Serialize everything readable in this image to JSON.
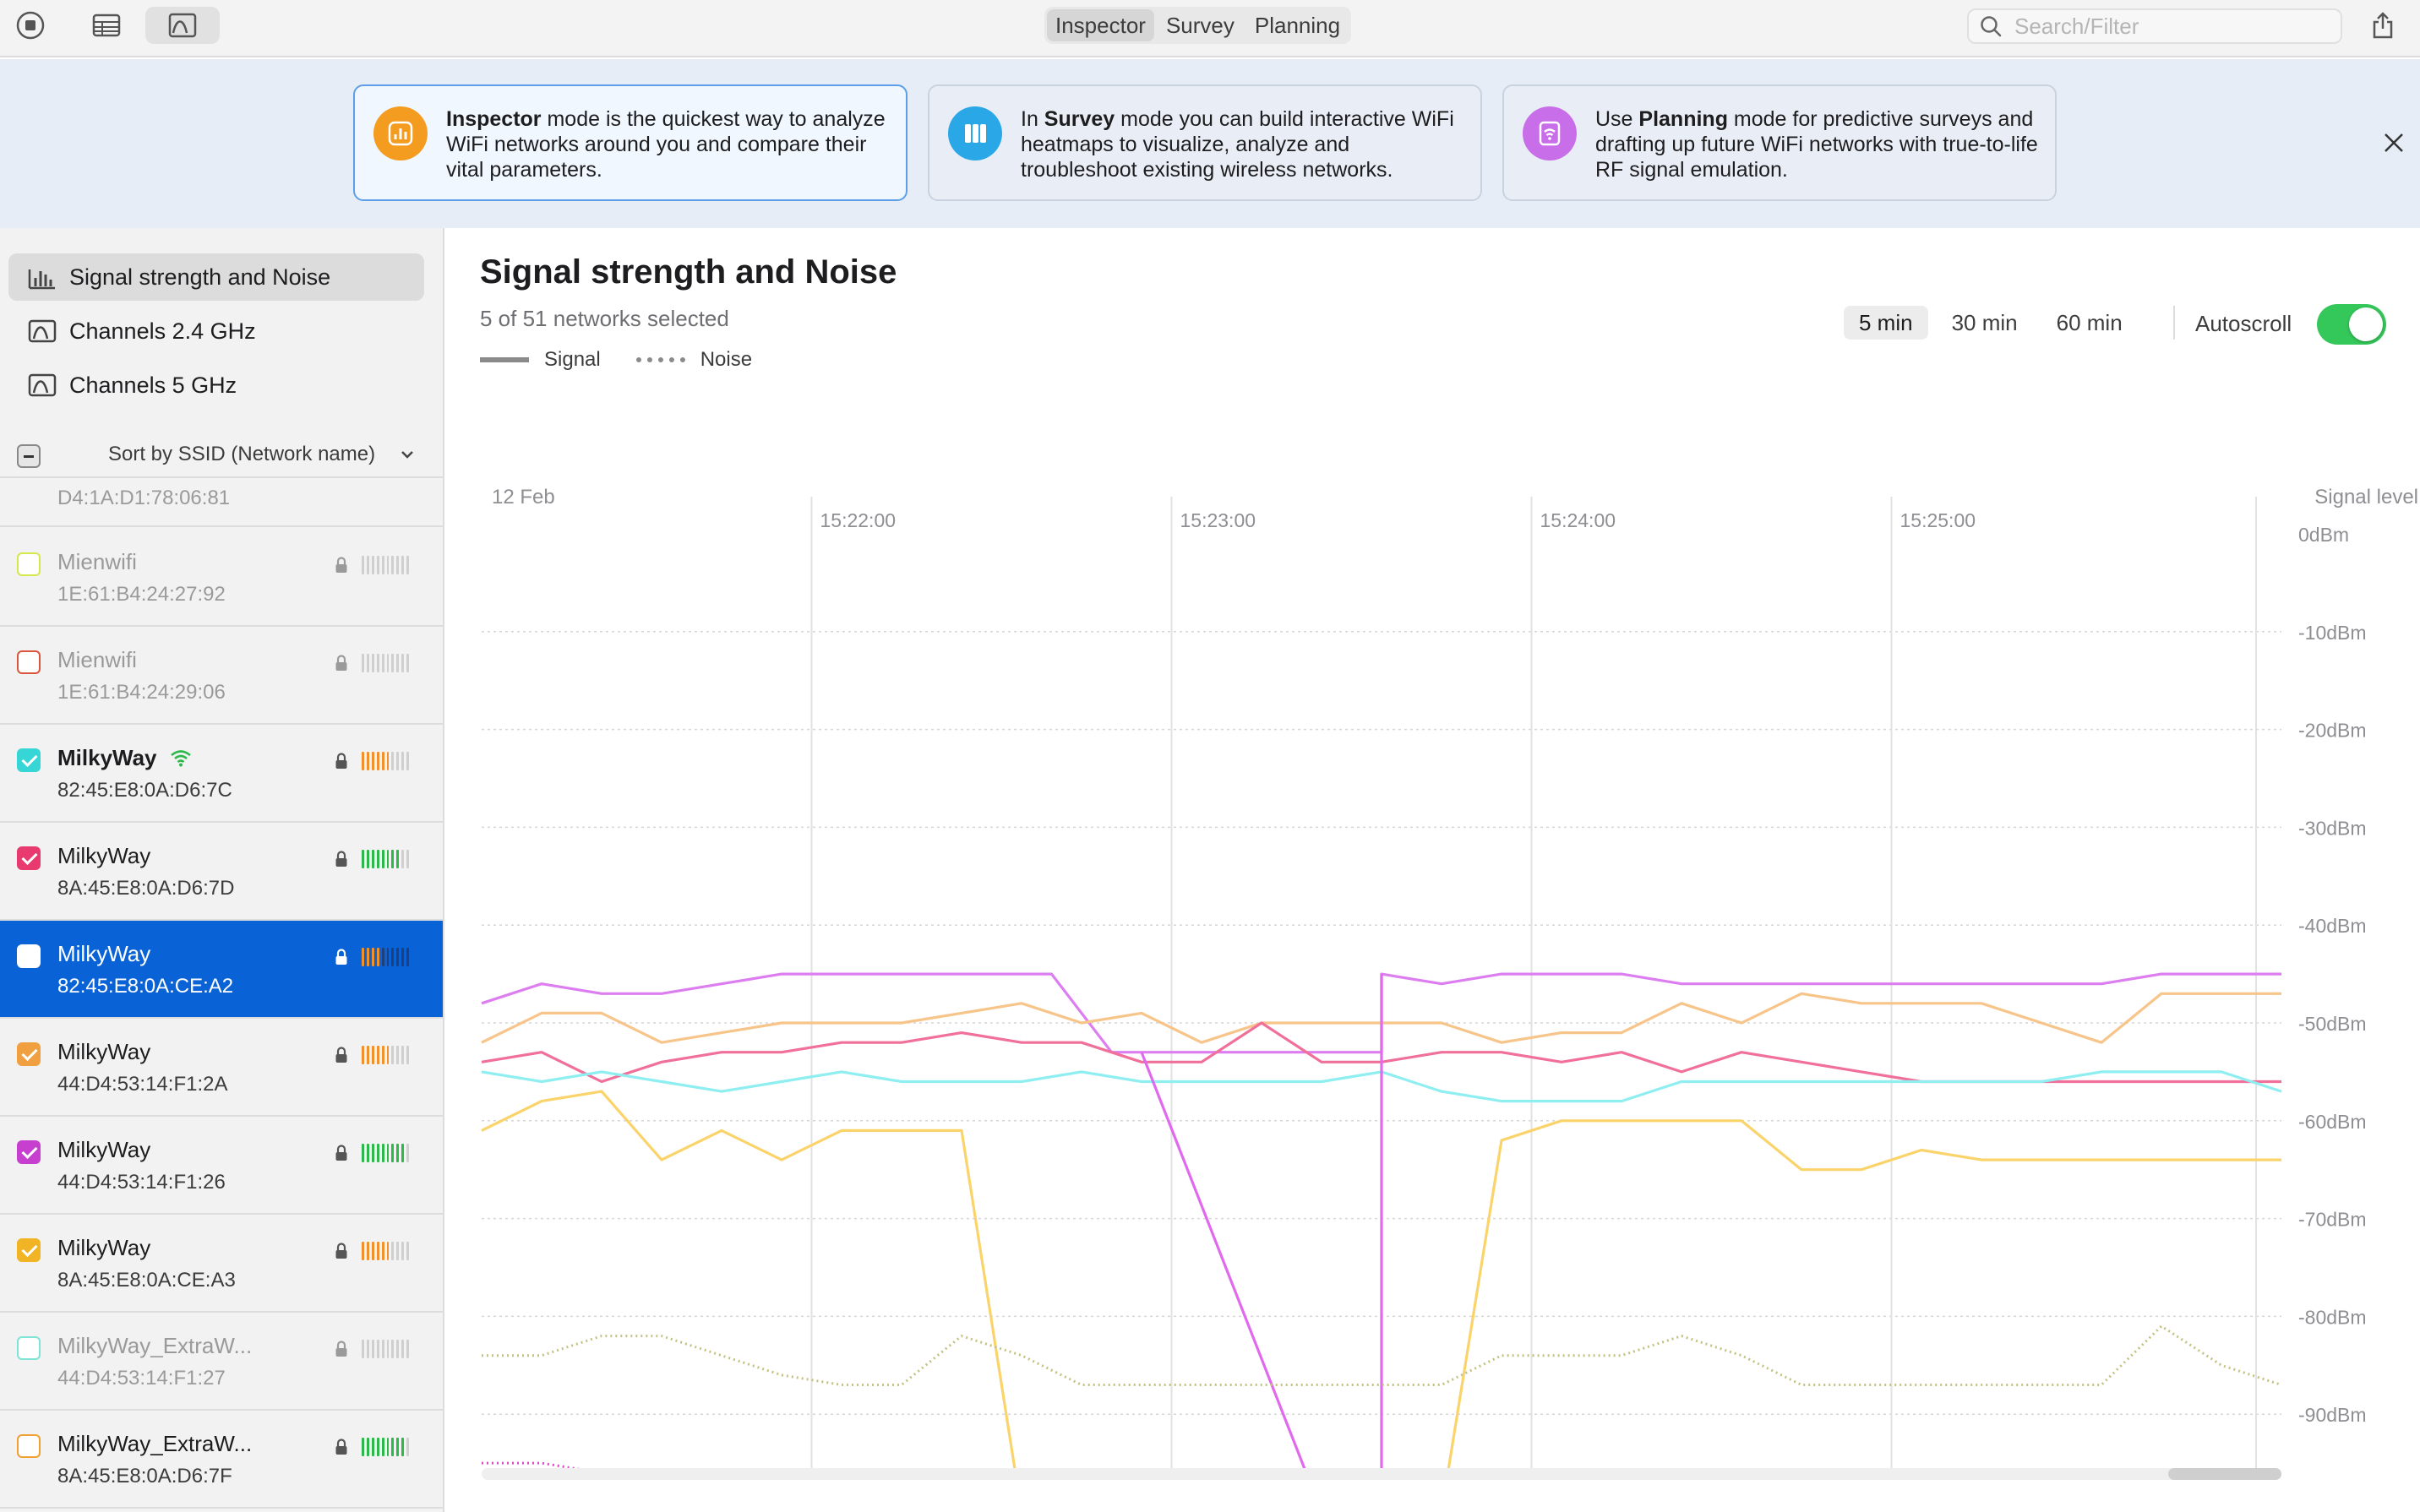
{
  "toolbar": {
    "modes": [
      {
        "label": "Inspector",
        "active": true
      },
      {
        "label": "Survey",
        "active": false
      },
      {
        "label": "Planning",
        "active": false
      }
    ],
    "search_placeholder": "Search/Filter",
    "icons": [
      "record-icon",
      "table-view-icon",
      "channel-view-icon",
      "share-icon"
    ]
  },
  "banner": {
    "cards": [
      {
        "pre": "",
        "bold": "Inspector",
        "text": " mode is the quickest way to analyze WiFi networks around you and compare their vital parameters.",
        "icon": "inspector-icon",
        "color": "#f39c1f",
        "active": true
      },
      {
        "pre": "In ",
        "bold": "Survey",
        "text": " mode you can build interactive WiFi heatmaps to visualize, analyze and troubleshoot existing wireless networks.",
        "icon": "survey-icon",
        "color": "#2aa7e6",
        "active": false
      },
      {
        "pre": "Use ",
        "bold": "Planning",
        "text": " mode for predictive surveys and drafting up future WiFi networks with true-to-life RF signal emulation.",
        "icon": "planning-icon",
        "color": "#c86ee8",
        "active": false
      }
    ]
  },
  "sidebar": {
    "nav": [
      {
        "label": "Signal strength and Noise",
        "icon": "signal-chart-icon",
        "active": true
      },
      {
        "label": "Channels 2.4 GHz",
        "icon": "channel-icon",
        "active": false
      },
      {
        "label": "Channels 5 GHz",
        "icon": "channel-icon",
        "active": false
      }
    ],
    "sort_label": "Sort by SSID (Network name)",
    "top_partial_bssid": "D4:1A:D1:78:06:81",
    "networks": [
      {
        "ssid": "Mienwifi",
        "bssid": "1E:61:B4:24:27:92",
        "color": "#d4e84a",
        "checked": false,
        "dim": true,
        "connected": false,
        "bars": 0,
        "bar_color": "#cfcfcf",
        "selected": false
      },
      {
        "ssid": "Mienwifi",
        "bssid": "1E:61:B4:24:29:06",
        "color": "#d9553c",
        "checked": false,
        "dim": true,
        "connected": false,
        "bars": 0,
        "bar_color": "#cfcfcf",
        "selected": false
      },
      {
        "ssid": "MilkyWay",
        "bssid": "82:45:E8:0A:D6:7C",
        "color": "#37d6d6",
        "checked": true,
        "dim": false,
        "connected": true,
        "bars": 3,
        "bar_color": "#f0912c",
        "selected": false
      },
      {
        "ssid": "MilkyWay",
        "bssid": "8A:45:E8:0A:D6:7D",
        "color": "#e83a6e",
        "checked": true,
        "dim": false,
        "connected": false,
        "bars": 4,
        "bar_color": "#2db84c",
        "selected": false
      },
      {
        "ssid": "MilkyWay",
        "bssid": "82:45:E8:0A:CE:A2",
        "color": "#ffffff",
        "checked": false,
        "dim": false,
        "connected": false,
        "bars": 2,
        "bar_color": "#f0912c",
        "selected": true
      },
      {
        "ssid": "MilkyWay",
        "bssid": "44:D4:53:14:F1:2A",
        "color": "#f0a040",
        "checked": true,
        "dim": false,
        "connected": false,
        "bars": 3,
        "bar_color": "#f0912c",
        "selected": false
      },
      {
        "ssid": "MilkyWay",
        "bssid": "44:D4:53:14:F1:26",
        "color": "#c63fcf",
        "checked": true,
        "dim": false,
        "connected": false,
        "bars": 5,
        "bar_color": "#2db84c",
        "selected": false
      },
      {
        "ssid": "MilkyWay",
        "bssid": "8A:45:E8:0A:CE:A3",
        "color": "#f0b424",
        "checked": true,
        "dim": false,
        "connected": false,
        "bars": 3,
        "bar_color": "#f0912c",
        "selected": false
      },
      {
        "ssid": "MilkyWay_ExtraW...",
        "bssid": "44:D4:53:14:F1:27",
        "color": "#7fe3d6",
        "checked": false,
        "dim": true,
        "connected": false,
        "bars": 0,
        "bar_color": "#cfcfcf",
        "selected": false
      },
      {
        "ssid": "MilkyWay_ExtraW...",
        "bssid": "8A:45:E8:0A:D6:7F",
        "color": "#f0a030",
        "checked": false,
        "dim": false,
        "connected": false,
        "bars": 5,
        "bar_color": "#2db84c",
        "selected": false
      }
    ]
  },
  "main": {
    "title": "Signal strength and Noise",
    "subtitle": "5 of 51 networks selected",
    "legend_signal": "Signal",
    "legend_noise": "Noise",
    "time_options": [
      {
        "label": "5 min",
        "active": true
      },
      {
        "label": "30 min",
        "active": false
      },
      {
        "label": "60 min",
        "active": false
      }
    ],
    "autoscroll_label": "Autoscroll",
    "autoscroll_on": true
  },
  "chart_data": {
    "type": "line",
    "title": "Signal strength and Noise",
    "date_label": "12 Feb",
    "ylabel": "Signal level",
    "x_ticks": [
      "15:22:00",
      "15:23:00",
      "15:24:00",
      "15:25:00"
    ],
    "y_ticks": [
      "0dBm",
      "-10dBm",
      "-20dBm",
      "-30dBm",
      "-40dBm",
      "-50dBm",
      "-60dBm",
      "-70dBm",
      "-80dBm",
      "-90dBm"
    ],
    "ylim": [
      -100,
      0
    ],
    "x_range_seconds": [
      -55,
      245
    ],
    "x_unit": "seconds after 15:22:00",
    "grid": true,
    "series": [
      {
        "kind": "signal",
        "color": "#dd7ef0",
        "x": [
          -55,
          -45,
          -35,
          -25,
          -15,
          -5,
          5,
          15,
          25,
          35,
          40,
          50,
          55,
          80,
          95,
          95,
          105,
          115,
          125,
          135,
          145,
          155,
          165,
          175,
          185,
          195,
          205,
          215,
          225,
          235,
          245
        ],
        "y": [
          -48,
          -46,
          -47,
          -47,
          -46,
          -45,
          -45,
          -45,
          -45,
          -45,
          -45,
          -53,
          -53,
          -53,
          -53,
          -45,
          -46,
          -45,
          -45,
          -45,
          -46,
          -46,
          -46,
          -46,
          -46,
          -46,
          -46,
          -46,
          -45,
          -45,
          -45
        ]
      },
      {
        "kind": "signal",
        "color": "#f7c48a",
        "x": [
          -55,
          -45,
          -35,
          -25,
          -15,
          -5,
          5,
          15,
          25,
          35,
          45,
          55,
          65,
          75,
          85,
          95,
          105,
          115,
          125,
          135,
          145,
          155,
          165,
          175,
          185,
          195,
          205,
          215,
          225,
          235,
          245
        ],
        "y": [
          -52,
          -49,
          -49,
          -52,
          -51,
          -50,
          -50,
          -50,
          -49,
          -48,
          -50,
          -49,
          -52,
          -50,
          -50,
          -50,
          -50,
          -52,
          -51,
          -51,
          -48,
          -50,
          -47,
          -48,
          -48,
          -48,
          -50,
          -52,
          -47,
          -47,
          -47
        ]
      },
      {
        "kind": "signal",
        "color": "#f0709a",
        "x": [
          -55,
          -45,
          -35,
          -25,
          -15,
          -5,
          5,
          15,
          25,
          35,
          45,
          55,
          65,
          75,
          85,
          95,
          105,
          115,
          125,
          135,
          145,
          155,
          165,
          175,
          185,
          195,
          205,
          215,
          225,
          235,
          245
        ],
        "y": [
          -54,
          -53,
          -56,
          -54,
          -53,
          -53,
          -52,
          -52,
          -51,
          -52,
          -52,
          -54,
          -54,
          -50,
          -54,
          -54,
          -53,
          -53,
          -54,
          -53,
          -55,
          -53,
          -54,
          -55,
          -56,
          -56,
          -56,
          -56,
          -56,
          -56,
          -56
        ]
      },
      {
        "kind": "signal",
        "color": "#8eeef0",
        "x": [
          -55,
          -45,
          -35,
          -25,
          -15,
          -5,
          5,
          15,
          25,
          35,
          45,
          55,
          65,
          75,
          85,
          95,
          105,
          115,
          125,
          135,
          145,
          155,
          165,
          175,
          185,
          195,
          205,
          215,
          225,
          235,
          245
        ],
        "y": [
          -55,
          -56,
          -55,
          -56,
          -57,
          -56,
          -55,
          -56,
          -56,
          -56,
          -55,
          -56,
          -56,
          -56,
          -56,
          -55,
          -57,
          -58,
          -58,
          -58,
          -56,
          -56,
          -56,
          -56,
          -56,
          -56,
          -56,
          -55,
          -55,
          -55,
          -57
        ]
      },
      {
        "kind": "signal",
        "color": "#fad36a",
        "x": [
          -55,
          -45,
          -35,
          -25,
          -15,
          -5,
          5,
          15,
          25,
          35,
          45,
          55,
          65,
          75,
          85,
          95,
          105,
          115,
          125,
          135,
          145,
          155,
          165,
          175,
          185,
          195,
          205,
          215,
          225,
          235,
          245
        ],
        "y": [
          -61,
          -58,
          -57,
          -64,
          -61,
          -64,
          -61,
          -61,
          -61,
          -100,
          -100,
          -100,
          -100,
          -100,
          -100,
          -100,
          -100,
          -62,
          -60,
          -60,
          -60,
          -60,
          -65,
          -65,
          -63,
          -64,
          -64,
          -64,
          -64,
          -64,
          -64
        ]
      },
      {
        "kind": "signal",
        "color": "#e069ee",
        "x": [
          55,
          85,
          95,
          95
        ],
        "y": [
          -53,
          -100,
          -100,
          -45
        ]
      },
      {
        "kind": "noise",
        "color": "#c4c282",
        "x": [
          -55,
          -45,
          -35,
          -25,
          -15,
          -5,
          5,
          15,
          25,
          35,
          45,
          55,
          65,
          75,
          85,
          95,
          105,
          115,
          125,
          135,
          145,
          155,
          165,
          175,
          185,
          195,
          205,
          215,
          225,
          235,
          245
        ],
        "y": [
          -84,
          -84,
          -82,
          -82,
          -84,
          -86,
          -87,
          -87,
          -82,
          -84,
          -87,
          -87,
          -87,
          -87,
          -87,
          -87,
          -87,
          -84,
          -84,
          -84,
          -82,
          -84,
          -87,
          -87,
          -87,
          -87,
          -87,
          -87,
          -81,
          -85,
          -87
        ]
      },
      {
        "kind": "noise",
        "color": "#d84ec8",
        "x": [
          -55,
          -45,
          -35,
          -25,
          -15,
          -5,
          5,
          15,
          25,
          35,
          45,
          55,
          65,
          75,
          85,
          95,
          105,
          115,
          125,
          135,
          145,
          155,
          165,
          175,
          185,
          195,
          205,
          215,
          225,
          235,
          245
        ],
        "y": [
          -95,
          -95,
          -96,
          -96,
          -96,
          -96,
          -96,
          -96,
          -96,
          -96,
          -96,
          -96,
          -96,
          -96,
          -96,
          -96,
          -97,
          -97,
          -97,
          -97,
          -98,
          -98,
          -98,
          -98,
          -98,
          -98,
          -98,
          -98,
          -98,
          -98,
          -98
        ]
      }
    ]
  }
}
